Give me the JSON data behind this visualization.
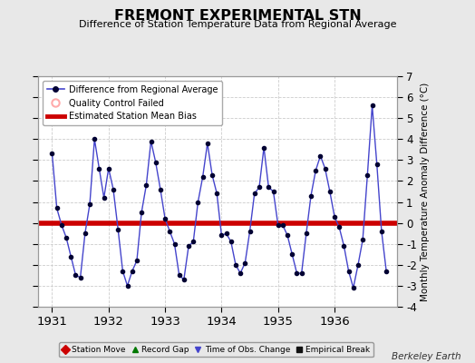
{
  "title": "FREMONT EXPERIMENTAL STN",
  "subtitle": "Difference of Station Temperature Data from Regional Average",
  "ylabel_right": "Monthly Temperature Anomaly Difference (°C)",
  "bias": 0.0,
  "ylim": [
    -4,
    7
  ],
  "yticks": [
    -4,
    -3,
    -2,
    -1,
    0,
    1,
    2,
    3,
    4,
    5,
    6,
    7
  ],
  "background_color": "#e8e8e8",
  "plot_bg_color": "#ffffff",
  "line_color": "#4444cc",
  "marker_color": "#000033",
  "bias_color": "#cc0000",
  "watermark": "Berkeley Earth",
  "xlim": [
    1930.75,
    1937.1
  ],
  "xticks": [
    1931,
    1932,
    1933,
    1934,
    1935,
    1936
  ],
  "x_values": [
    1931.0,
    1931.083,
    1931.167,
    1931.25,
    1931.333,
    1931.417,
    1931.5,
    1931.583,
    1931.667,
    1931.75,
    1931.833,
    1931.917,
    1932.0,
    1932.083,
    1932.167,
    1932.25,
    1932.333,
    1932.417,
    1932.5,
    1932.583,
    1932.667,
    1932.75,
    1932.833,
    1932.917,
    1933.0,
    1933.083,
    1933.167,
    1933.25,
    1933.333,
    1933.417,
    1933.5,
    1933.583,
    1933.667,
    1933.75,
    1933.833,
    1933.917,
    1934.0,
    1934.083,
    1934.167,
    1934.25,
    1934.333,
    1934.417,
    1934.5,
    1934.583,
    1934.667,
    1934.75,
    1934.833,
    1934.917,
    1935.0,
    1935.083,
    1935.167,
    1935.25,
    1935.333,
    1935.417,
    1935.5,
    1935.583,
    1935.667,
    1935.75,
    1935.833,
    1935.917,
    1936.0,
    1936.083,
    1936.167,
    1936.25,
    1936.333,
    1936.417,
    1936.5,
    1936.583,
    1936.667,
    1936.75,
    1936.833,
    1936.917
  ],
  "y_values": [
    3.3,
    0.7,
    -0.1,
    -0.7,
    -1.6,
    -2.5,
    -2.6,
    -0.5,
    0.9,
    4.0,
    2.6,
    1.2,
    2.6,
    1.6,
    -0.3,
    -2.3,
    -3.0,
    -2.3,
    -1.8,
    0.5,
    1.8,
    3.9,
    2.9,
    1.6,
    0.2,
    -0.4,
    -1.0,
    -2.5,
    -2.7,
    -1.1,
    -0.9,
    1.0,
    2.2,
    3.8,
    2.3,
    1.4,
    -0.6,
    -0.5,
    -0.9,
    -2.0,
    -2.4,
    -1.9,
    -0.4,
    1.4,
    1.7,
    3.6,
    1.7,
    1.5,
    -0.1,
    -0.1,
    -0.6,
    -1.5,
    -2.4,
    -2.4,
    -0.5,
    1.3,
    2.5,
    3.2,
    2.6,
    1.5,
    0.3,
    -0.2,
    -1.1,
    -2.3,
    -3.1,
    -2.0,
    -0.8,
    2.3,
    5.6,
    2.8,
    -0.4,
    -2.3
  ],
  "legend_items": [
    {
      "label": "Difference from Regional Average",
      "color": "#4444cc",
      "marker": "o"
    },
    {
      "label": "Quality Control Failed",
      "color": "#ffaaaa"
    },
    {
      "label": "Estimated Station Mean Bias",
      "color": "#cc0000"
    }
  ],
  "bottom_legend": [
    {
      "label": "Station Move",
      "color": "#cc0000",
      "marker": "D"
    },
    {
      "label": "Record Gap",
      "color": "#007700",
      "marker": "^"
    },
    {
      "label": "Time of Obs. Change",
      "color": "#4444cc",
      "marker": "v"
    },
    {
      "label": "Empirical Break",
      "color": "#111111",
      "marker": "s"
    }
  ]
}
